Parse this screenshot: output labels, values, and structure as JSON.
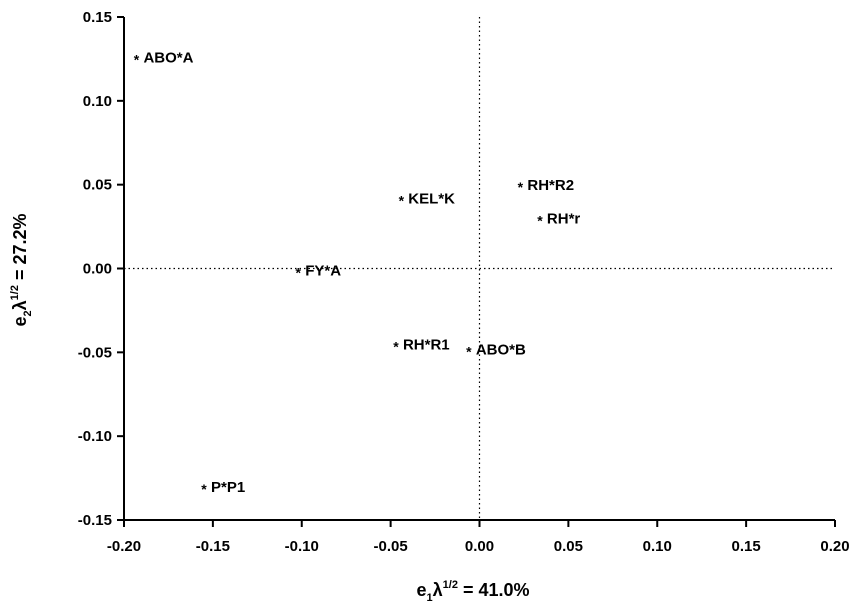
{
  "chart_data": {
    "type": "scatter",
    "xlim": [
      -0.2,
      0.2
    ],
    "ylim": [
      -0.15,
      0.15
    ],
    "x_ticks": [
      "-0.20",
      "-0.15",
      "-0.10",
      "-0.05",
      "0.00",
      "0.05",
      "0.10",
      "0.15",
      "0.20"
    ],
    "y_ticks": [
      "0.15",
      "0.10",
      "0.05",
      "0.00",
      "-0.05",
      "-0.10",
      "-0.15"
    ],
    "xlabel": {
      "base": "e",
      "sub": "1",
      "lambda": "λ",
      "sup": "1/2",
      "rest": " = 41.0%"
    },
    "ylabel": {
      "base": "e",
      "sub": "2",
      "lambda": "λ",
      "sup": "1/2",
      "rest": " = 27.2%"
    },
    "grid": false,
    "reference_lines": {
      "x0": true,
      "y0": true,
      "style": "dotted"
    },
    "marker": "*",
    "points": [
      {
        "label": "ABO*A",
        "x": -0.193,
        "y": 0.127
      },
      {
        "label": "KEL*K",
        "x": -0.044,
        "y": 0.043
      },
      {
        "label": "RH*R2",
        "x": 0.023,
        "y": 0.051
      },
      {
        "label": "RH*r",
        "x": 0.034,
        "y": 0.031
      },
      {
        "label": "FY*A",
        "x": -0.102,
        "y": 0.0
      },
      {
        "label": "RH*R1",
        "x": -0.047,
        "y": -0.044
      },
      {
        "label": "ABO*B",
        "x": -0.006,
        "y": -0.047
      },
      {
        "label": "P*P1",
        "x": -0.155,
        "y": -0.129
      }
    ]
  }
}
